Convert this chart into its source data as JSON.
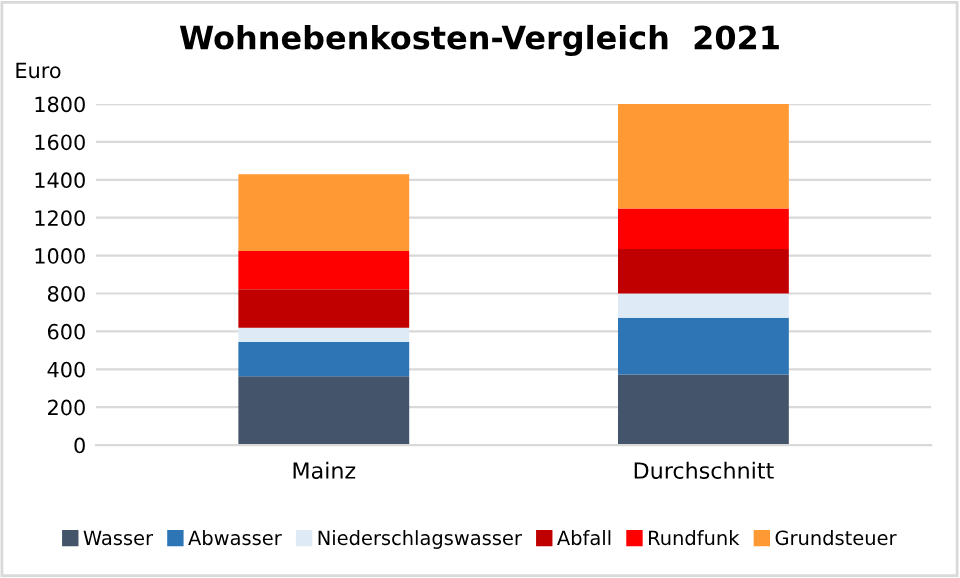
{
  "chart_data": {
    "type": "bar",
    "title": "Wohnebenkosten-Vergleich  2021",
    "ylabel": "Euro",
    "categories": [
      "Mainz",
      "Durchschnitt"
    ],
    "stacked": true,
    "series": [
      {
        "name": "Wasser",
        "color": "#44546a",
        "values": [
          363,
          373
        ]
      },
      {
        "name": "Abwasser",
        "color": "#2e75b6",
        "values": [
          181,
          299
        ]
      },
      {
        "name": "Niederschlagswasser",
        "color": "#deebf7",
        "values": [
          75,
          128
        ]
      },
      {
        "name": "Abfall",
        "color": "#c00000",
        "values": [
          203,
          235
        ]
      },
      {
        "name": "Rundfunk",
        "color": "#ff0000",
        "values": [
          202,
          214
        ]
      },
      {
        "name": "Grundsteuer",
        "color": "#ff9933",
        "values": [
          406,
          551
        ]
      }
    ],
    "ylim": [
      0,
      1800
    ],
    "yticks": [
      0,
      200,
      400,
      600,
      800,
      1000,
      1200,
      1400,
      1600,
      1800
    ],
    "grid": "y",
    "legend": "bottom"
  }
}
